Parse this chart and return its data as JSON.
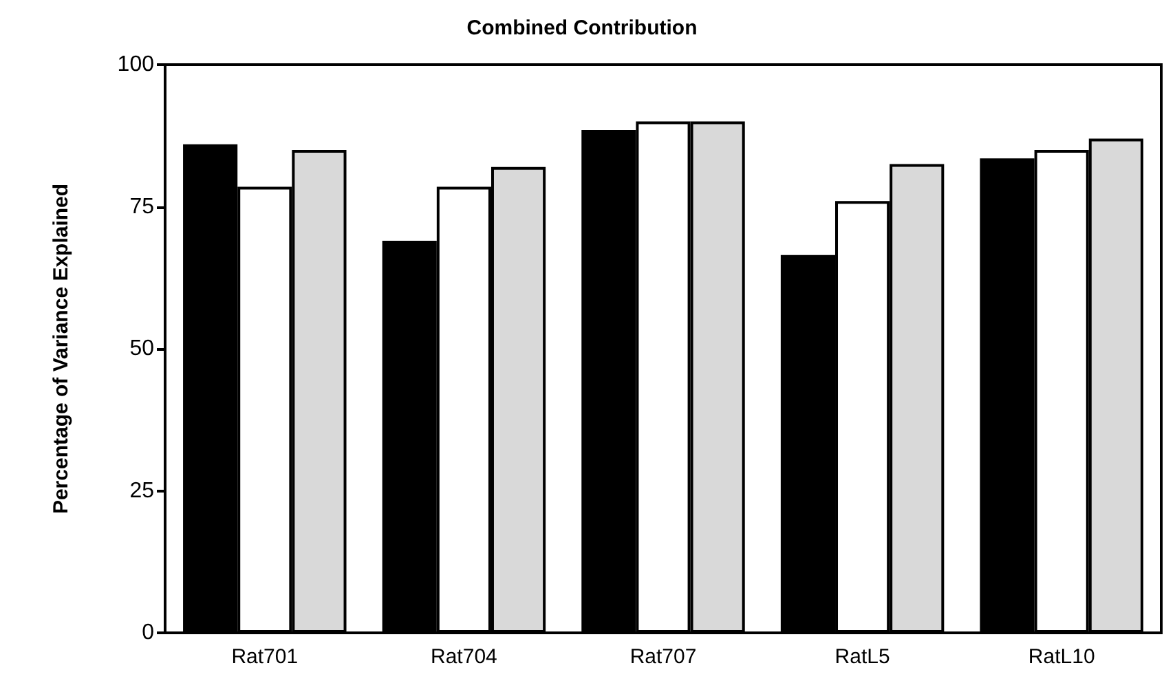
{
  "chart_data": {
    "type": "bar",
    "title": "Combined Contribution",
    "ylabel": "Percentage of Variance Explained",
    "categories": [
      "Rat701",
      "Rat704",
      "Rat707",
      "RatL5",
      "RatL10"
    ],
    "series": [
      {
        "color": "#000000",
        "values": [
          86,
          69,
          88.5,
          66.5,
          83.5
        ]
      },
      {
        "color": "#ffffff",
        "values": [
          78.5,
          78.5,
          90,
          76,
          85
        ]
      },
      {
        "color": "#d9d9d9",
        "values": [
          85,
          82,
          90,
          82.5,
          87
        ]
      }
    ],
    "ylim": [
      0,
      100
    ],
    "yticks": [
      0,
      25,
      50,
      75,
      100
    ],
    "grid": false
  }
}
